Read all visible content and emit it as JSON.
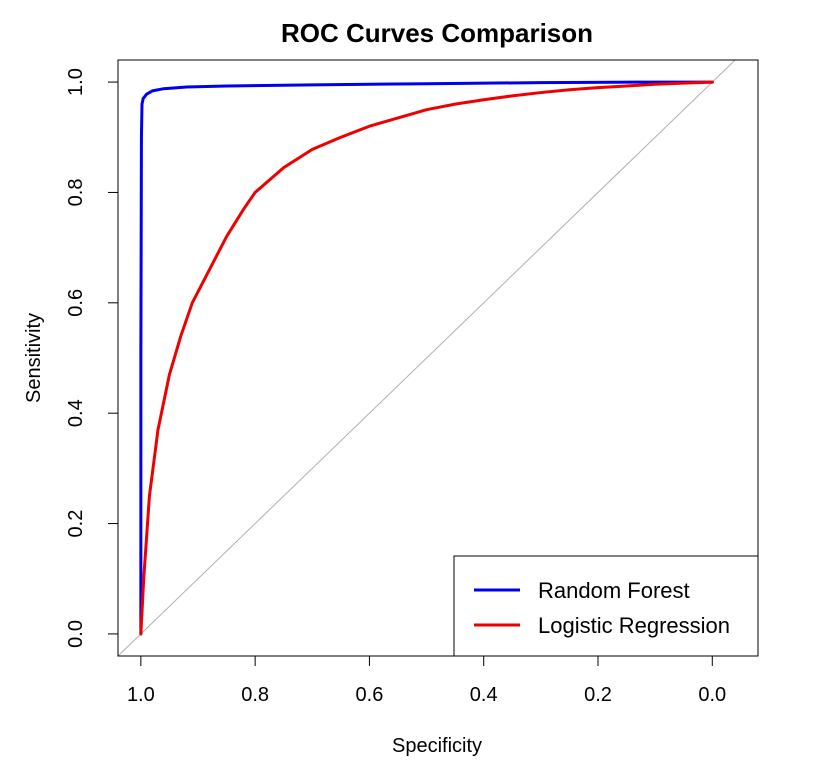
{
  "chart_data": {
    "type": "line",
    "title": "ROC Curves Comparison",
    "xlabel": "Specificity",
    "ylabel": "Sensitivity",
    "xlim": [
      1.04,
      -0.08
    ],
    "ylim": [
      -0.04,
      1.04
    ],
    "x_ticks": [
      1.0,
      0.8,
      0.6,
      0.4,
      0.2,
      0.0
    ],
    "x_tick_labels": [
      "1.0",
      "0.8",
      "0.6",
      "0.4",
      "0.2",
      "0.0"
    ],
    "y_ticks": [
      0.0,
      0.2,
      0.4,
      0.6,
      0.8,
      1.0
    ],
    "y_tick_labels": [
      "0.0",
      "0.2",
      "0.4",
      "0.6",
      "0.8",
      "1.0"
    ],
    "x_axis_reversed": true,
    "grid": false,
    "legend_position": "bottom-right",
    "reference_line": {
      "from": [
        1.0,
        0.0
      ],
      "to": [
        0.0,
        1.0
      ],
      "color": "#b0b0b0"
    },
    "series": [
      {
        "name": "Random Forest",
        "color": "#0000ee",
        "x": [
          1.0,
          1.0,
          0.999,
          0.998,
          0.996,
          0.99,
          0.98,
          0.96,
          0.92,
          0.85,
          0.7,
          0.5,
          0.3,
          0.1,
          0.0
        ],
        "y": [
          0.0,
          0.5,
          0.9,
          0.96,
          0.97,
          0.978,
          0.984,
          0.988,
          0.991,
          0.993,
          0.995,
          0.997,
          0.999,
          1.0,
          1.0
        ]
      },
      {
        "name": "Logistic Regression",
        "color": "#ee0000",
        "x": [
          1.0,
          0.995,
          0.985,
          0.97,
          0.95,
          0.93,
          0.91,
          0.88,
          0.85,
          0.82,
          0.8,
          0.75,
          0.7,
          0.65,
          0.6,
          0.55,
          0.5,
          0.45,
          0.4,
          0.35,
          0.3,
          0.25,
          0.2,
          0.15,
          0.1,
          0.05,
          0.0
        ],
        "y": [
          0.0,
          0.1,
          0.25,
          0.37,
          0.47,
          0.54,
          0.6,
          0.66,
          0.72,
          0.77,
          0.8,
          0.845,
          0.878,
          0.9,
          0.92,
          0.935,
          0.95,
          0.96,
          0.968,
          0.975,
          0.981,
          0.986,
          0.99,
          0.993,
          0.996,
          0.998,
          1.0
        ]
      }
    ]
  }
}
